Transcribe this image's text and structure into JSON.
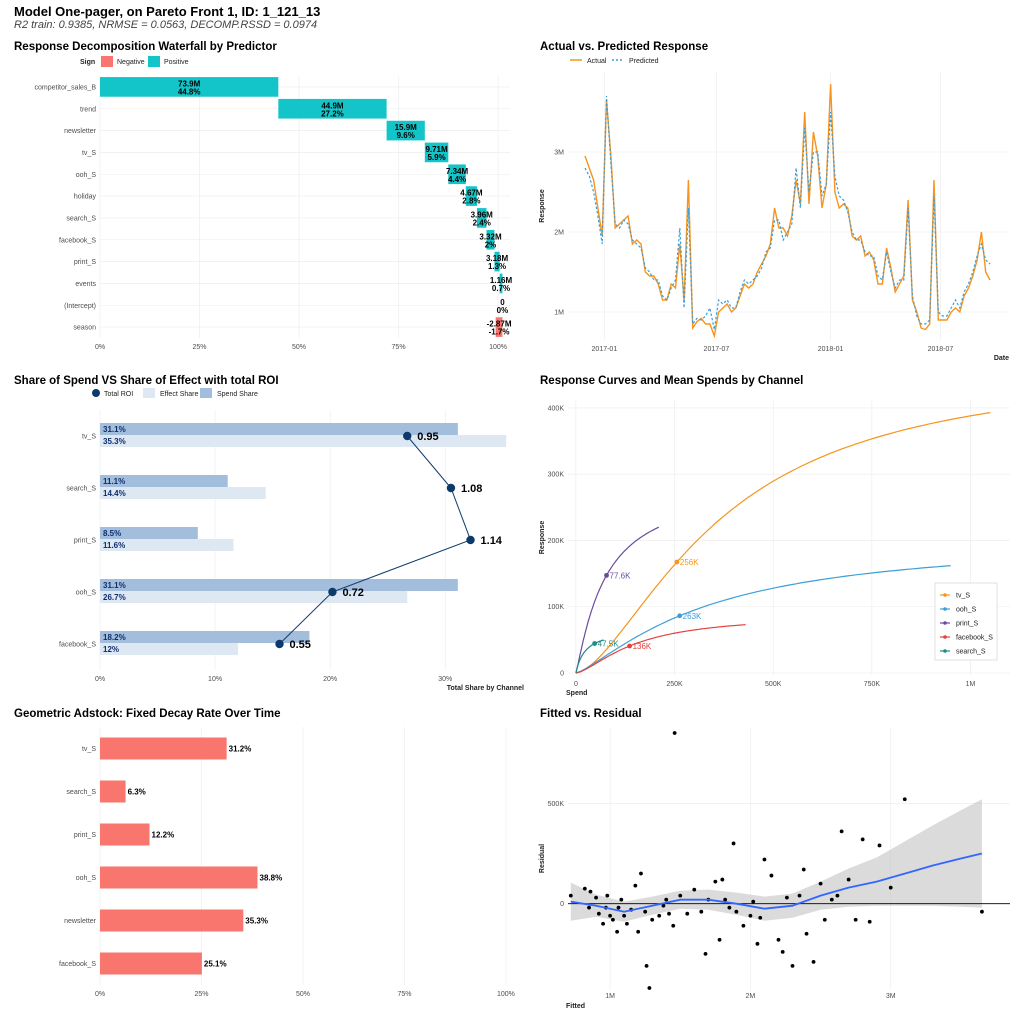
{
  "header": {
    "title": "Model One-pager, on Pareto Front 1, ID: 1_121_13",
    "subtitle": "R2 train: 0.9385, NRMSE = 0.0563, DECOMP.RSSD = 0.0974"
  },
  "colors": {
    "positive": "#13C4C8",
    "negative": "#F8766D",
    "actual": "#F7941D",
    "predicted": "#3B9FD9",
    "roi": "#0D3A6B",
    "effect_share": "#DDE8F3",
    "spend_share": "#A3BEDD",
    "adstock": "#F8766D",
    "tv_S": "#F7941D",
    "ooh_S": "#3B9FD9",
    "print_S": "#6A4B9C",
    "facebook_S": "#E5413C",
    "search_S": "#1F8A8A",
    "smooth": "#3366FF",
    "ribbon": "#BEBEBE"
  },
  "chart_data": [
    {
      "id": "waterfall",
      "type": "bar",
      "title": "Response Decomposition Waterfall by Predictor",
      "legend": {
        "title": "Sign",
        "items": [
          "Negative",
          "Positive"
        ],
        "position": "top-left"
      },
      "categories": [
        "competitor_sales_B",
        "trend",
        "newsletter",
        "tv_S",
        "ooh_S",
        "holiday",
        "search_S",
        "facebook_S",
        "print_S",
        "events",
        "(Intercept)",
        "season"
      ],
      "start_pct": [
        0,
        44.8,
        72.0,
        81.6,
        87.5,
        91.9,
        94.7,
        97.1,
        99.1,
        100.4,
        101.1,
        101.1
      ],
      "values_pct": [
        44.8,
        27.2,
        9.6,
        5.9,
        4.4,
        2.8,
        2.4,
        2.0,
        1.3,
        0.7,
        0,
        -1.7
      ],
      "value_labels": [
        "73.9M",
        "44.9M",
        "15.9M",
        "9.71M",
        "7.34M",
        "4.67M",
        "3.96M",
        "3.32M",
        "3.18M",
        "1.16M",
        "0",
        "-2.87M"
      ],
      "pct_labels": [
        "44.8%",
        "27.2%",
        "9.6%",
        "5.9%",
        "4.4%",
        "2.8%",
        "2.4%",
        "2%",
        "1.3%",
        "0.7%",
        "0%",
        "-1.7%"
      ],
      "x_ticks": [
        "0%",
        "25%",
        "50%",
        "75%",
        "100%"
      ],
      "x_tick_values": [
        0,
        25,
        50,
        75,
        100
      ],
      "xlim": [
        0,
        103
      ]
    },
    {
      "id": "actual_vs_predicted",
      "type": "line",
      "title": "Actual vs. Predicted Response",
      "legend": [
        "Actual",
        "Predicted"
      ],
      "ylabel": "Response",
      "xlabel": "Date",
      "x_ticks": [
        "2017-01",
        "2017-07",
        "2018-01",
        "2018-07"
      ],
      "x_tick_index": [
        4.5,
        30.5,
        57,
        82.5
      ],
      "y_ticks": [
        "1M",
        "2M",
        "3M"
      ],
      "y_tick_values": [
        1000000,
        2000000,
        3000000
      ],
      "ylim": [
        650000,
        4000000
      ],
      "actual": [
        2950000,
        2800000,
        2650000,
        2300000,
        1950000,
        3650000,
        2950000,
        2050000,
        2100000,
        2150000,
        2200000,
        1850000,
        1900000,
        1850000,
        1500000,
        1450000,
        1450000,
        1350000,
        1150000,
        1150000,
        1350000,
        1300000,
        1850000,
        1150000,
        2650000,
        800000,
        880000,
        920000,
        850000,
        850000,
        700000,
        1000000,
        1050000,
        1100000,
        1000000,
        1050000,
        1200000,
        1350000,
        1300000,
        1350000,
        1500000,
        1600000,
        1700000,
        1850000,
        2300000,
        2050000,
        2050000,
        1950000,
        2200000,
        2650000,
        2350000,
        3500000,
        2350000,
        3250000,
        2950000,
        2300000,
        2600000,
        3850000,
        2500000,
        2300000,
        2350000,
        2300000,
        1950000,
        1900000,
        1950000,
        1700000,
        1750000,
        1650000,
        1350000,
        1350000,
        1800000,
        1550000,
        1250000,
        1350000,
        1450000,
        2400000,
        1150000,
        1000000,
        800000,
        780000,
        850000,
        2650000,
        900000,
        900000,
        900000,
        1000000,
        1050000,
        1000000,
        1200000,
        1300000,
        1450000,
        1650000,
        2000000,
        1500000,
        1400000
      ],
      "predicted": [
        2800000,
        2700000,
        2500000,
        2200000,
        1850000,
        3700000,
        2850000,
        2100000,
        2050000,
        2150000,
        2100000,
        1900000,
        1850000,
        1800000,
        1550000,
        1500000,
        1400000,
        1400000,
        1200000,
        1150000,
        1300000,
        1400000,
        2050000,
        1050000,
        2300000,
        850000,
        920000,
        900000,
        950000,
        1050000,
        780000,
        1150000,
        1100000,
        1150000,
        1050000,
        1050000,
        1250000,
        1400000,
        1350000,
        1400000,
        1450000,
        1550000,
        1750000,
        1800000,
        2150000,
        2150000,
        1900000,
        2000000,
        2100000,
        2800000,
        2300000,
        3300000,
        2500000,
        3000000,
        3000000,
        2450000,
        2600000,
        3500000,
        2700000,
        2450000,
        2400000,
        2250000,
        2000000,
        1900000,
        1900000,
        1750000,
        1700000,
        1700000,
        1450000,
        1400000,
        1750000,
        1500000,
        1300000,
        1400000,
        1400000,
        2300000,
        1200000,
        950000,
        850000,
        850000,
        900000,
        2450000,
        1000000,
        950000,
        950000,
        1050000,
        1150000,
        1050000,
        1250000,
        1350000,
        1500000,
        1700000,
        1850000,
        1650000,
        1600000
      ]
    },
    {
      "id": "share_spend_effect",
      "type": "bar",
      "title": "Share of Spend VS Share of Effect with total ROI",
      "legend": [
        "Total ROI",
        "Effect Share",
        "Spend Share"
      ],
      "xlabel": "Total Share by Channel",
      "categories": [
        "tv_S",
        "search_S",
        "print_S",
        "ooh_S",
        "facebook_S"
      ],
      "series": [
        {
          "name": "Spend Share",
          "values": [
            31.1,
            11.1,
            8.5,
            31.1,
            18.2
          ],
          "labels": [
            "31.1%",
            "11.1%",
            "8.5%",
            "31.1%",
            "18.2%"
          ]
        },
        {
          "name": "Effect Share",
          "values": [
            35.3,
            14.4,
            11.6,
            26.7,
            12.0
          ],
          "labels": [
            "35.3%",
            "14.4%",
            "11.6%",
            "26.7%",
            "12%"
          ]
        }
      ],
      "roi": [
        0.95,
        1.08,
        1.14,
        0.72,
        0.55
      ],
      "roi_labels": [
        "0.95",
        "1.08",
        "1.14",
        "0.72",
        "0.55"
      ],
      "roi_x_pct": [
        26.7,
        30.5,
        32.2,
        20.2,
        15.6
      ],
      "x_ticks": [
        "0%",
        "10%",
        "20%",
        "30%"
      ],
      "x_tick_values": [
        0,
        10,
        20,
        30
      ],
      "xlim": [
        0,
        36.5
      ]
    },
    {
      "id": "response_curves",
      "type": "line",
      "title": "Response Curves and Mean Spends by Channel",
      "xlabel": "Spend",
      "ylabel": "Response",
      "x_ticks": [
        "0",
        "250K",
        "500K",
        "750K",
        "1M"
      ],
      "x_tick_values": [
        0,
        250000,
        500000,
        750000,
        1000000
      ],
      "y_ticks": [
        "0",
        "100K",
        "200K",
        "300K",
        "400K"
      ],
      "y_tick_values": [
        0,
        100000,
        200000,
        300000,
        400000
      ],
      "xlim": [
        -20000,
        1100000
      ],
      "ylim": [
        -3000,
        412000
      ],
      "series": [
        {
          "name": "tv_S",
          "max_spend": 1050000,
          "max_resp": 393000,
          "shape": 1.6,
          "mean_spend": 256000,
          "mean_label": "256K"
        },
        {
          "name": "ooh_S",
          "max_spend": 950000,
          "max_resp": 162000,
          "shape": 1.3,
          "mean_spend": 263000,
          "mean_label": "263K"
        },
        {
          "name": "print_S",
          "max_spend": 210000,
          "max_resp": 220000,
          "shape": 1.15,
          "mean_spend": 77600,
          "mean_label": "77.6K"
        },
        {
          "name": "facebook_S",
          "max_spend": 430000,
          "max_resp": 73000,
          "shape": 1.5,
          "mean_spend": 136000,
          "mean_label": "136K"
        },
        {
          "name": "search_S",
          "max_spend": 70000,
          "max_resp": 50000,
          "shape": 1.0,
          "mean_spend": 47500,
          "mean_label": "47.5K"
        }
      ],
      "legend": [
        "tv_S",
        "ooh_S",
        "print_S",
        "facebook_S",
        "search_S"
      ]
    },
    {
      "id": "adstock",
      "type": "bar",
      "title": "Geometric Adstock: Fixed Decay Rate Over Time",
      "categories": [
        "tv_S",
        "search_S",
        "print_S",
        "ooh_S",
        "newsletter",
        "facebook_S"
      ],
      "values": [
        31.2,
        6.3,
        12.2,
        38.8,
        35.3,
        25.1
      ],
      "labels": [
        "31.2%",
        "6.3%",
        "12.2%",
        "38.8%",
        "35.3%",
        "25.1%"
      ],
      "x_ticks": [
        "0%",
        "25%",
        "50%",
        "75%",
        "100%"
      ],
      "x_tick_values": [
        0,
        25,
        50,
        75,
        100
      ],
      "xlim": [
        0,
        101
      ]
    },
    {
      "id": "fitted_vs_residual",
      "type": "scatter",
      "title": "Fitted vs. Residual",
      "xlabel": "Fitted",
      "ylabel": "Residual",
      "x_ticks": [
        "1M",
        "2M",
        "3M"
      ],
      "x_tick_values": [
        1000000,
        2000000,
        3000000
      ],
      "y_ticks": [
        "0",
        "500K"
      ],
      "y_tick_values": [
        0,
        500000
      ],
      "xlim": [
        700000,
        3850000
      ],
      "ylim": [
        -430000,
        880000
      ],
      "points": [
        [
          720000,
          40000
        ],
        [
          820000,
          75000
        ],
        [
          860000,
          60000
        ],
        [
          850000,
          -20000
        ],
        [
          900000,
          30000
        ],
        [
          920000,
          -50000
        ],
        [
          950000,
          -100000
        ],
        [
          970000,
          -20000
        ],
        [
          980000,
          40000
        ],
        [
          1000000,
          -60000
        ],
        [
          1020000,
          -80000
        ],
        [
          1050000,
          -140000
        ],
        [
          1060000,
          -20000
        ],
        [
          1080000,
          20000
        ],
        [
          1100000,
          -60000
        ],
        [
          1120000,
          -100000
        ],
        [
          1150000,
          -30000
        ],
        [
          1180000,
          90000
        ],
        [
          1200000,
          -140000
        ],
        [
          1220000,
          150000
        ],
        [
          1250000,
          -40000
        ],
        [
          1260000,
          -310000
        ],
        [
          1280000,
          -420000
        ],
        [
          1300000,
          -80000
        ],
        [
          1350000,
          -60000
        ],
        [
          1380000,
          -10000
        ],
        [
          1400000,
          20000
        ],
        [
          1420000,
          -50000
        ],
        [
          1450000,
          -110000
        ],
        [
          1460000,
          850000
        ],
        [
          1500000,
          40000
        ],
        [
          1550000,
          -50000
        ],
        [
          1600000,
          70000
        ],
        [
          1650000,
          -40000
        ],
        [
          1680000,
          -250000
        ],
        [
          1700000,
          20000
        ],
        [
          1750000,
          110000
        ],
        [
          1780000,
          -180000
        ],
        [
          1800000,
          120000
        ],
        [
          1820000,
          20000
        ],
        [
          1850000,
          -20000
        ],
        [
          1880000,
          300000
        ],
        [
          1900000,
          -40000
        ],
        [
          1950000,
          -110000
        ],
        [
          2000000,
          -60000
        ],
        [
          2020000,
          10000
        ],
        [
          2050000,
          -200000
        ],
        [
          2070000,
          -70000
        ],
        [
          2100000,
          220000
        ],
        [
          2150000,
          140000
        ],
        [
          2200000,
          -180000
        ],
        [
          2230000,
          -240000
        ],
        [
          2260000,
          30000
        ],
        [
          2300000,
          -310000
        ],
        [
          2350000,
          40000
        ],
        [
          2380000,
          170000
        ],
        [
          2400000,
          -150000
        ],
        [
          2450000,
          -290000
        ],
        [
          2500000,
          100000
        ],
        [
          2530000,
          -80000
        ],
        [
          2580000,
          20000
        ],
        [
          2620000,
          40000
        ],
        [
          2650000,
          360000
        ],
        [
          2700000,
          120000
        ],
        [
          2750000,
          -80000
        ],
        [
          2800000,
          320000
        ],
        [
          2850000,
          -90000
        ],
        [
          2920000,
          290000
        ],
        [
          3000000,
          80000
        ],
        [
          3100000,
          520000
        ],
        [
          3650000,
          -40000
        ]
      ],
      "smooth": [
        [
          720000,
          10000
        ],
        [
          900000,
          -10000
        ],
        [
          1100000,
          -40000
        ],
        [
          1300000,
          -10000
        ],
        [
          1500000,
          20000
        ],
        [
          1700000,
          20000
        ],
        [
          1900000,
          0
        ],
        [
          2100000,
          -25000
        ],
        [
          2300000,
          -10000
        ],
        [
          2500000,
          40000
        ],
        [
          2700000,
          80000
        ],
        [
          2900000,
          110000
        ],
        [
          3100000,
          150000
        ],
        [
          3300000,
          190000
        ],
        [
          3500000,
          225000
        ],
        [
          3650000,
          250000
        ]
      ],
      "ribbon_half": [
        [
          720000,
          95000
        ],
        [
          900000,
          55000
        ],
        [
          1100000,
          50000
        ],
        [
          1300000,
          45000
        ],
        [
          1500000,
          45000
        ],
        [
          1700000,
          50000
        ],
        [
          1900000,
          55000
        ],
        [
          2100000,
          60000
        ],
        [
          2300000,
          60000
        ],
        [
          2500000,
          70000
        ],
        [
          2700000,
          95000
        ],
        [
          2900000,
          120000
        ],
        [
          3100000,
          160000
        ],
        [
          3300000,
          200000
        ],
        [
          3500000,
          240000
        ],
        [
          3650000,
          270000
        ]
      ]
    }
  ]
}
